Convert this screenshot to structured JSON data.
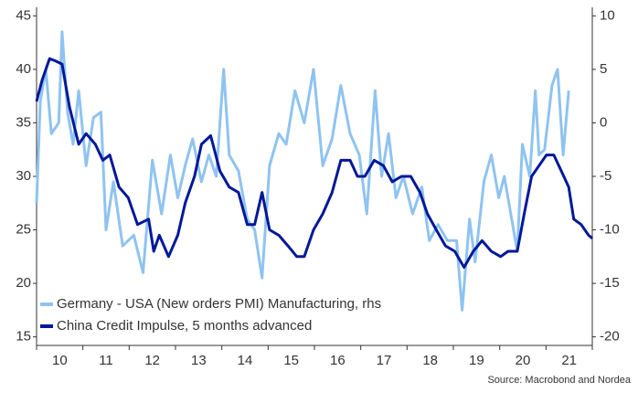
{
  "chart_data": {
    "type": "line",
    "xlim": [
      2010,
      2022
    ],
    "xticks": [
      {
        "value": 2010.5,
        "label": "10"
      },
      {
        "value": 2011.5,
        "label": "11"
      },
      {
        "value": 2012.5,
        "label": "12"
      },
      {
        "value": 2013.5,
        "label": "13"
      },
      {
        "value": 2014.5,
        "label": "14"
      },
      {
        "value": 2015.5,
        "label": "15"
      },
      {
        "value": 2016.5,
        "label": "16"
      },
      {
        "value": 2017.5,
        "label": "17"
      },
      {
        "value": 2018.5,
        "label": "18"
      },
      {
        "value": 2019.5,
        "label": "19"
      },
      {
        "value": 2020.5,
        "label": "20"
      },
      {
        "value": 2021.5,
        "label": "21"
      }
    ],
    "ylim": [
      14.2,
      45.8
    ],
    "yticks": [
      15,
      20,
      25,
      30,
      35,
      40,
      45
    ],
    "y2lim": [
      -20.8,
      10.8
    ],
    "y2ticks": [
      -20,
      -15,
      -10,
      -5,
      0,
      5,
      10
    ],
    "legend": "lower left",
    "source": "Source: Macrobond and Nordea",
    "series": [
      {
        "name": "Germany - USA (New orders PMI) Manufacturing, rhs",
        "color": "#8fc3f0",
        "axis": "y2",
        "x": [
          2010.0,
          2010.08,
          2010.2,
          2010.32,
          2010.48,
          2010.55,
          2010.67,
          2010.79,
          2010.91,
          2011.07,
          2011.23,
          2011.39,
          2011.5,
          2011.66,
          2011.86,
          2012.1,
          2012.3,
          2012.5,
          2012.7,
          2012.89,
          2013.05,
          2013.21,
          2013.37,
          2013.56,
          2013.72,
          2013.88,
          2014.04,
          2014.16,
          2014.36,
          2014.55,
          2014.71,
          2014.87,
          2015.03,
          2015.23,
          2015.39,
          2015.58,
          2015.78,
          2015.98,
          2016.18,
          2016.38,
          2016.57,
          2016.77,
          2016.97,
          2017.13,
          2017.31,
          2017.45,
          2017.6,
          2017.76,
          2017.92,
          2018.12,
          2018.32,
          2018.48,
          2018.67,
          2018.87,
          2019.07,
          2019.19,
          2019.35,
          2019.47,
          2019.66,
          2019.82,
          2019.98,
          2020.1,
          2020.26,
          2020.38,
          2020.49,
          2020.65,
          2020.77,
          2020.85,
          2020.97,
          2021.13,
          2021.25,
          2021.37,
          2021.49
        ],
        "values": [
          -7.5,
          2,
          5,
          -1,
          0,
          8.5,
          1,
          -2,
          3,
          -4,
          0.5,
          1,
          -10,
          -5.5,
          -11.5,
          -10.5,
          -14,
          -3.5,
          -8.5,
          -3,
          -7,
          -4,
          -1.5,
          -5.5,
          -3,
          -5,
          5,
          -3,
          -4.5,
          -9,
          -10,
          -14.5,
          -4,
          -1,
          -2,
          3,
          0,
          5,
          -4,
          -1.5,
          3.5,
          -1,
          -3,
          -8.5,
          3,
          -5,
          -1,
          -7,
          -5,
          -8.5,
          -6,
          -11,
          -9.5,
          -11,
          -11,
          -17.5,
          -9,
          -13,
          -5.5,
          -3,
          -7,
          -5,
          -9,
          -12,
          -2,
          -5,
          3,
          -3,
          -2.5,
          3.5,
          5,
          -3,
          3
        ]
      },
      {
        "name": "China Credit Impulse, 5 months advanced",
        "color": "#00189a",
        "x": [
          2010.0,
          2010.12,
          2010.28,
          2010.4,
          2010.55,
          2010.71,
          2010.91,
          2011.07,
          2011.27,
          2011.43,
          2011.58,
          2011.78,
          2011.98,
          2012.18,
          2012.42,
          2012.53,
          2012.65,
          2012.85,
          2013.05,
          2013.21,
          2013.41,
          2013.56,
          2013.76,
          2013.96,
          2014.16,
          2014.36,
          2014.55,
          2014.71,
          2014.87,
          2015.03,
          2015.23,
          2015.43,
          2015.62,
          2015.78,
          2015.98,
          2016.18,
          2016.38,
          2016.57,
          2016.77,
          2016.93,
          2017.09,
          2017.29,
          2017.49,
          2017.68,
          2017.88,
          2018.08,
          2018.28,
          2018.44,
          2018.63,
          2018.83,
          2019.03,
          2019.23,
          2019.43,
          2019.62,
          2019.82,
          2020.02,
          2020.18,
          2020.38,
          2020.53,
          2020.69,
          2020.85,
          2021.01,
          2021.17,
          2021.33,
          2021.49,
          2021.6,
          2021.76,
          2021.92,
          2022.0
        ],
        "values": [
          37,
          39,
          41,
          40.8,
          40.5,
          36.5,
          33,
          34,
          33,
          31.5,
          32,
          29,
          28,
          25.5,
          26,
          23,
          24.5,
          22.5,
          24.5,
          27.5,
          30,
          33,
          33.8,
          30.5,
          29,
          28.5,
          25.5,
          25.5,
          28.5,
          25,
          24.5,
          23.5,
          22.5,
          22.5,
          25,
          26.5,
          28.5,
          31.5,
          31.5,
          30,
          30,
          31.5,
          31,
          29.5,
          30,
          30,
          28.5,
          26.5,
          25,
          23.5,
          23,
          21.5,
          23,
          24,
          23,
          22.5,
          23,
          23,
          26.5,
          30,
          31,
          32,
          32,
          30.5,
          29,
          26,
          25.5,
          24.5,
          24.2
        ]
      }
    ]
  }
}
